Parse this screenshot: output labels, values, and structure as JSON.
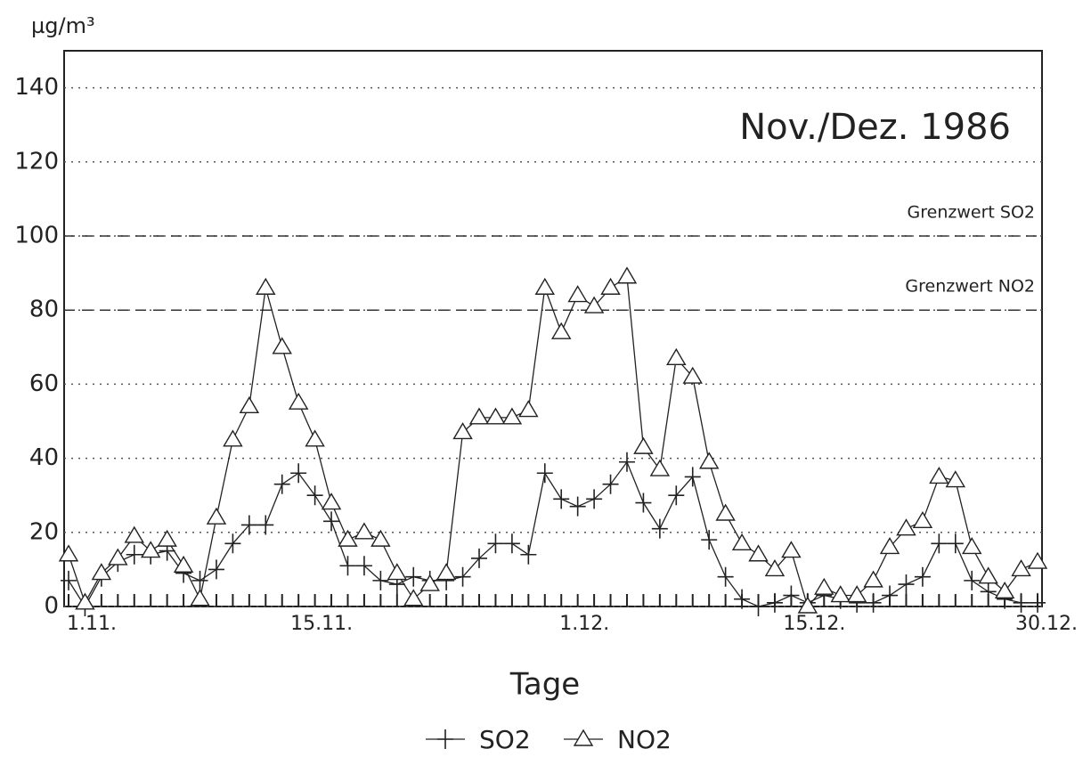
{
  "chart_data": {
    "type": "line",
    "y_unit": "µg/m³",
    "annotation": "Nov./Dez. 1986",
    "xlabel": "Tage",
    "categories": [
      "1.11.",
      null,
      null,
      null,
      null,
      null,
      null,
      null,
      null,
      null,
      null,
      null,
      null,
      null,
      "15.11.",
      null,
      null,
      null,
      null,
      null,
      null,
      null,
      null,
      null,
      null,
      null,
      null,
      null,
      null,
      null,
      "1.12.",
      null,
      null,
      null,
      null,
      null,
      null,
      null,
      null,
      null,
      null,
      null,
      null,
      null,
      "15.12.",
      null,
      null,
      null,
      null,
      null,
      null,
      null,
      null,
      null,
      null,
      null,
      null,
      null,
      null,
      "30.12."
    ],
    "series": [
      {
        "name": "SO2",
        "color": "#222222",
        "marker": "plus",
        "values": [
          7,
          0,
          8,
          12,
          14,
          14,
          15,
          9,
          7,
          10,
          17,
          22,
          22,
          33,
          36,
          30,
          23,
          11,
          11,
          7,
          6,
          8,
          7,
          7,
          8,
          13,
          17,
          17,
          14,
          36,
          29,
          27,
          29,
          33,
          39,
          28,
          21,
          30,
          35,
          18,
          8,
          2,
          0,
          1,
          3,
          1,
          3,
          2,
          1,
          1,
          3,
          6,
          8,
          17,
          17,
          7,
          4,
          2,
          1,
          1
        ]
      },
      {
        "name": "NO2",
        "color": "#222222",
        "marker": "triangle",
        "values": [
          14,
          1,
          9,
          13,
          19,
          15,
          18,
          11,
          2,
          24,
          45,
          54,
          86,
          70,
          55,
          45,
          28,
          18,
          20,
          18,
          9,
          2,
          6,
          9,
          47,
          51,
          51,
          51,
          53,
          86,
          74,
          84,
          81,
          86,
          89,
          43,
          37,
          67,
          62,
          39,
          25,
          17,
          14,
          10,
          15,
          0,
          5,
          3,
          3,
          7,
          16,
          21,
          23,
          35,
          34,
          16,
          8,
          4,
          10,
          12
        ]
      }
    ],
    "thresholds": [
      {
        "label": "Grenzwert SO2",
        "value": 100
      },
      {
        "label": "Grenzwert NO2",
        "value": 80
      }
    ],
    "ylim": [
      0,
      150
    ],
    "yticks": [
      0,
      20,
      40,
      60,
      80,
      100,
      120,
      140
    ],
    "grid": true
  }
}
